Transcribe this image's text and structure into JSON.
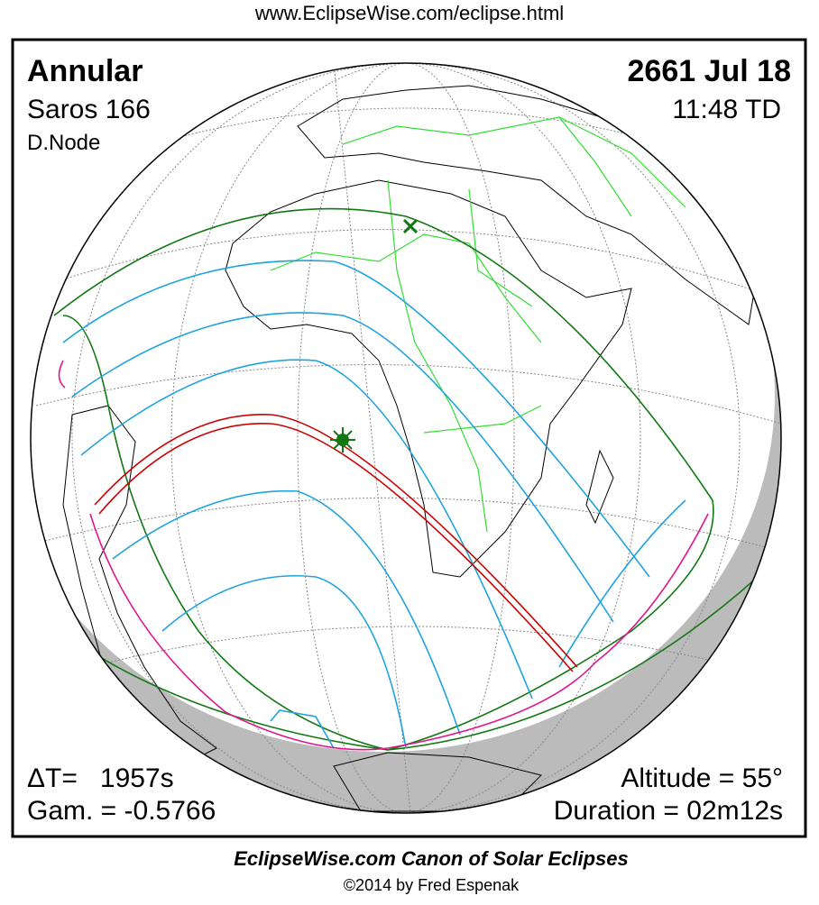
{
  "header": {
    "url": "www.EclipseWise.com/eclipse.html"
  },
  "panel": {
    "eclipse_type": "Annular",
    "saros": "Saros 166",
    "node": "D.Node",
    "date": "2661 Jul 18",
    "time": "11:48 TD",
    "delta_t": "ΔT=   1957s",
    "gamma": "Gam. = -0.5766",
    "altitude": "Altitude = 55°",
    "duration": "Duration = 02m12s"
  },
  "footer": {
    "title": "EclipseWise.com Canon of Solar Eclipses",
    "copyright": "©2014 by Fred Espenak"
  }
}
